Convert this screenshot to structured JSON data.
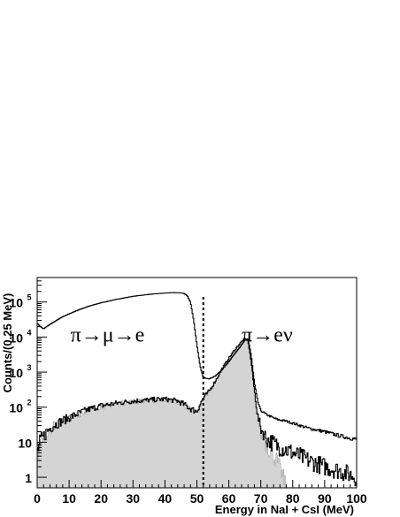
{
  "chart_data": {
    "type": "histogram",
    "xlabel": "Energy in NaI + CsI (MeV)",
    "ylabel": "Counts/(0.25 MeV)",
    "xlim": [
      0,
      100
    ],
    "ylim": [
      0.5,
      500000
    ],
    "yscale": "log",
    "x_ticks": [
      0,
      10,
      20,
      30,
      40,
      50,
      60,
      70,
      80,
      90,
      100
    ],
    "y_ticks": [
      {
        "base": "1",
        "exp": "",
        "value": 1
      },
      {
        "base": "10",
        "exp": "",
        "value": 10
      },
      {
        "base": "10",
        "exp": "2",
        "value": 100
      },
      {
        "base": "10",
        "exp": "3",
        "value": 1000
      },
      {
        "base": "10",
        "exp": "4",
        "value": 10000
      },
      {
        "base": "10",
        "exp": "5",
        "value": 100000
      }
    ],
    "grid": false,
    "annotations": [
      {
        "text": "π→μ→e",
        "x": 22,
        "y": 12000
      },
      {
        "text": "π→eν",
        "x": 72,
        "y": 12000
      }
    ],
    "cut_line_x": 52,
    "series": [
      {
        "style": "line",
        "color": "#000000",
        "points": [
          [
            0,
            25000
          ],
          [
            1,
            20000
          ],
          [
            2,
            17000
          ],
          [
            3,
            20000
          ],
          [
            5,
            26000
          ],
          [
            8,
            38000
          ],
          [
            12,
            55000
          ],
          [
            16,
            75000
          ],
          [
            20,
            95000
          ],
          [
            25,
            120000
          ],
          [
            30,
            145000
          ],
          [
            35,
            165000
          ],
          [
            40,
            180000
          ],
          [
            43,
            185000
          ],
          [
            45,
            183000
          ],
          [
            46,
            175000
          ],
          [
            47,
            150000
          ],
          [
            48,
            100000
          ],
          [
            49,
            30000
          ],
          [
            50,
            6000
          ],
          [
            51,
            1500
          ],
          [
            52,
            700
          ],
          [
            54,
            650
          ],
          [
            56,
            800
          ],
          [
            58,
            1200
          ],
          [
            60,
            2000
          ],
          [
            62,
            3500
          ],
          [
            64,
            6000
          ],
          [
            65,
            8000
          ],
          [
            66,
            9000
          ],
          [
            67,
            3000
          ],
          [
            68,
            500
          ],
          [
            69,
            150
          ],
          [
            70,
            80
          ],
          [
            72,
            60
          ],
          [
            75,
            45
          ],
          [
            78,
            40
          ],
          [
            80,
            35
          ],
          [
            85,
            25
          ],
          [
            90,
            20
          ],
          [
            95,
            15
          ],
          [
            100,
            12
          ]
        ]
      },
      {
        "style": "line",
        "color": "#000000",
        "points": [
          [
            0,
            5
          ],
          [
            1,
            10
          ],
          [
            3,
            20
          ],
          [
            5,
            30
          ],
          [
            10,
            50
          ],
          [
            15,
            80
          ],
          [
            20,
            110
          ],
          [
            25,
            130
          ],
          [
            30,
            150
          ],
          [
            35,
            160
          ],
          [
            40,
            170
          ],
          [
            44,
            150
          ],
          [
            46,
            120
          ],
          [
            48,
            90
          ],
          [
            50,
            75
          ],
          [
            51,
            120
          ],
          [
            52,
            180
          ],
          [
            54,
            300
          ],
          [
            56,
            600
          ],
          [
            58,
            1300
          ],
          [
            60,
            2500
          ],
          [
            62,
            4500
          ],
          [
            64,
            7500
          ],
          [
            65,
            9000
          ],
          [
            66,
            8000
          ],
          [
            67,
            2000
          ],
          [
            68,
            300
          ],
          [
            69,
            60
          ],
          [
            70,
            25
          ],
          [
            72,
            12
          ],
          [
            75,
            8
          ],
          [
            78,
            6
          ],
          [
            80,
            5
          ],
          [
            85,
            3
          ],
          [
            90,
            2
          ],
          [
            95,
            1.5
          ],
          [
            100,
            1
          ]
        ]
      },
      {
        "style": "filled",
        "color": "#d4d4d4",
        "points": [
          [
            0,
            3
          ],
          [
            1,
            8
          ],
          [
            3,
            18
          ],
          [
            5,
            28
          ],
          [
            10,
            48
          ],
          [
            15,
            75
          ],
          [
            20,
            105
          ],
          [
            25,
            125
          ],
          [
            30,
            145
          ],
          [
            35,
            155
          ],
          [
            40,
            165
          ],
          [
            44,
            145
          ],
          [
            46,
            115
          ],
          [
            48,
            85
          ],
          [
            50,
            70
          ],
          [
            51,
            110
          ],
          [
            52,
            170
          ],
          [
            54,
            280
          ],
          [
            56,
            560
          ],
          [
            58,
            1200
          ],
          [
            60,
            2300
          ],
          [
            62,
            4200
          ],
          [
            64,
            7000
          ],
          [
            65,
            8500
          ],
          [
            66,
            7500
          ],
          [
            67,
            1800
          ],
          [
            68,
            250
          ],
          [
            69,
            50
          ],
          [
            70,
            18
          ],
          [
            72,
            8
          ],
          [
            75,
            3
          ],
          [
            77,
            1
          ],
          [
            78,
            0.6
          ]
        ]
      }
    ]
  }
}
